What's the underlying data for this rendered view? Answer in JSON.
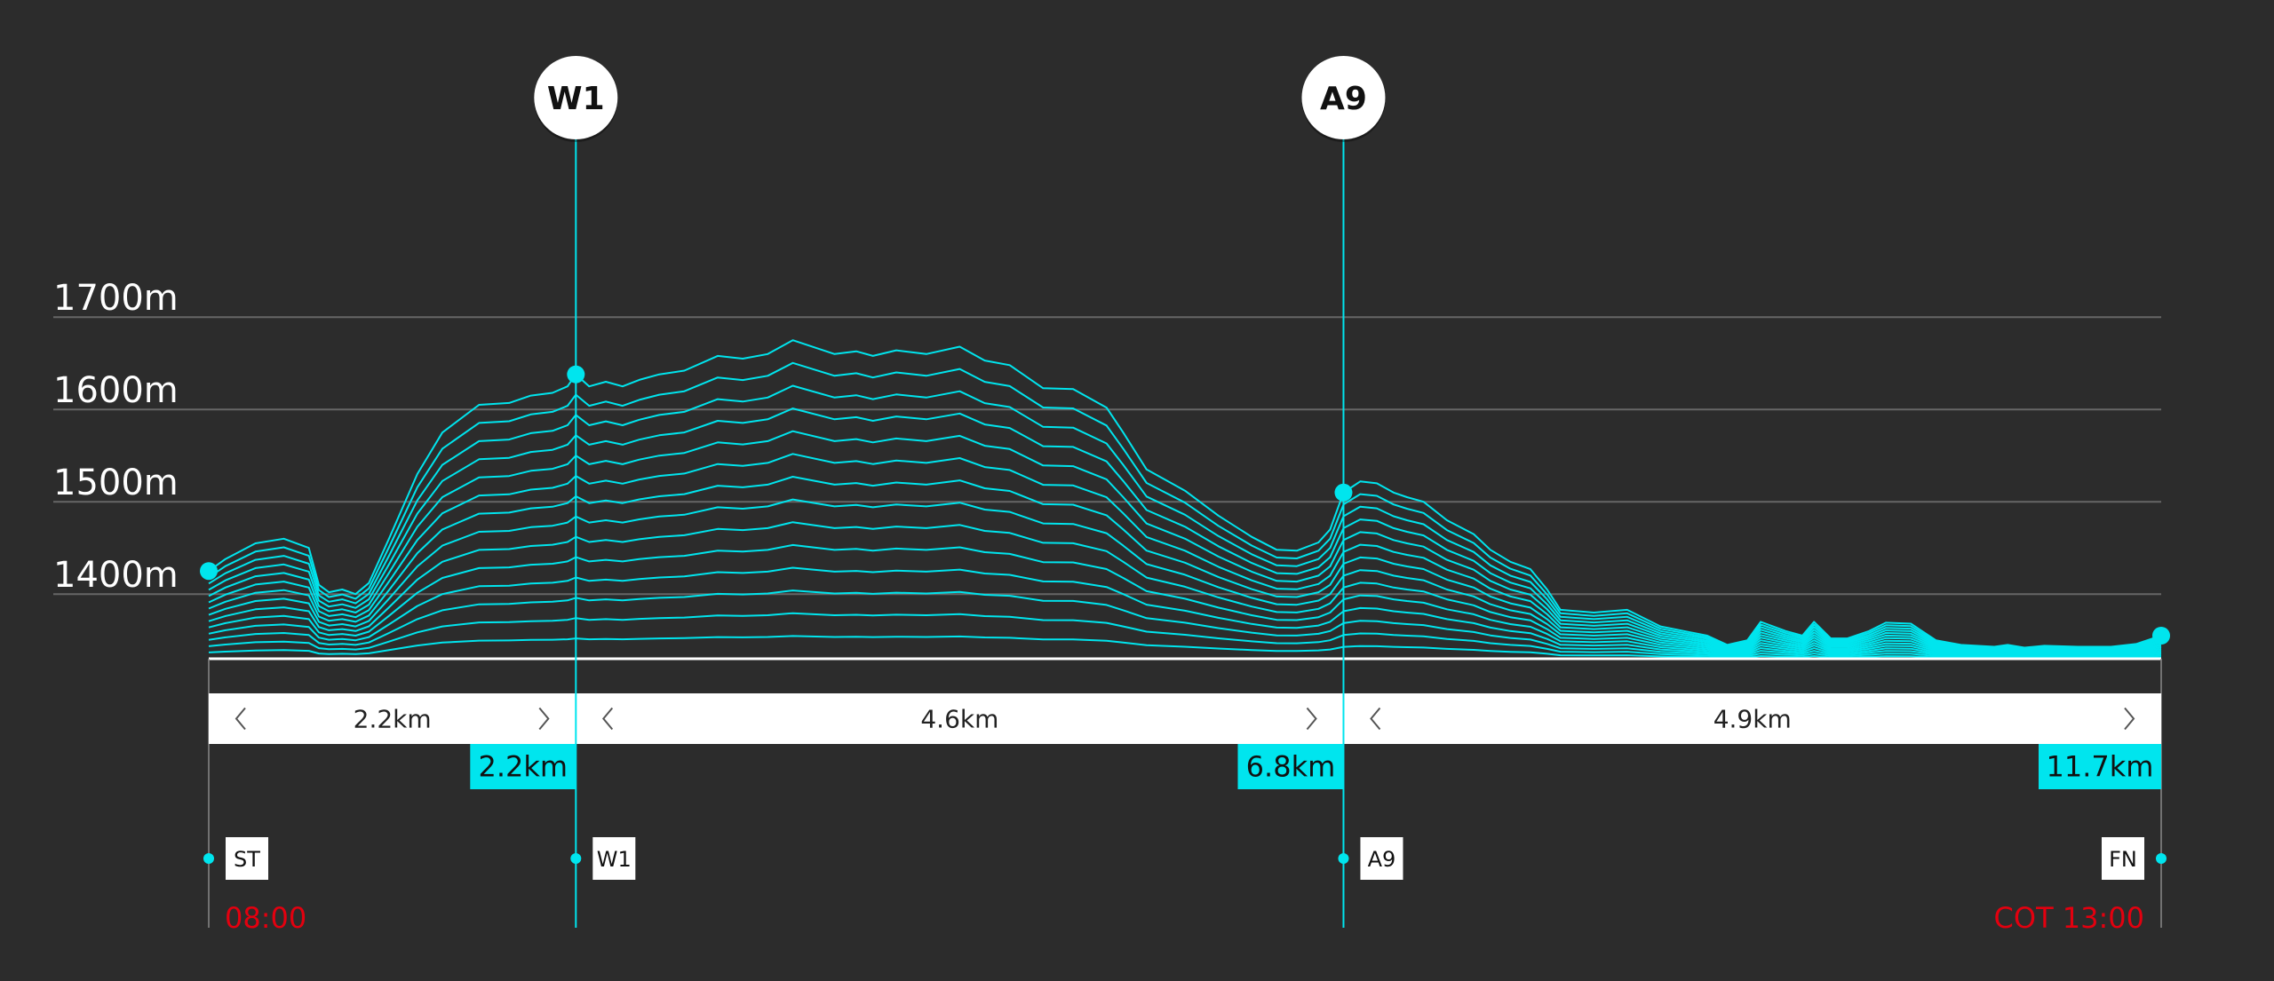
{
  "colors": {
    "background": "#2c2c2c",
    "accent": "#00e5ee",
    "gridline": "#666666",
    "baseline": "#ffffff",
    "time": "#e3000f"
  },
  "chart_data": {
    "type": "line",
    "title": "",
    "xlabel": "",
    "ylabel": "",
    "x_unit": "km",
    "xlim": [
      0,
      11.7
    ],
    "ylim": [
      1330,
      1700
    ],
    "y_ticks": [
      {
        "value": 1700,
        "label": "1700m"
      },
      {
        "value": 1600,
        "label": "1600m"
      },
      {
        "value": 1500,
        "label": "1500m"
      },
      {
        "value": 1400,
        "label": "1400m"
      }
    ],
    "grid": true,
    "layers": 14,
    "series": [
      {
        "x": [
          0,
          0.1,
          0.28,
          0.45,
          0.6,
          0.66,
          0.72,
          0.8,
          0.88,
          0.96,
          1.08,
          1.25,
          1.4,
          1.62,
          1.8,
          1.93,
          2.06,
          2.15,
          2.2,
          2.28,
          2.38,
          2.48,
          2.58,
          2.7,
          2.85,
          3.05,
          3.2,
          3.35,
          3.5,
          3.75,
          3.88,
          3.98,
          4.12,
          4.3,
          4.5,
          4.65,
          4.8,
          5.0,
          5.18,
          5.38,
          5.48,
          5.62,
          5.85,
          6.05,
          6.25,
          6.4,
          6.52,
          6.65,
          6.72,
          6.8,
          6.9,
          7.0,
          7.1,
          7.18,
          7.28,
          7.42,
          7.58,
          7.68,
          7.8,
          7.92,
          8.02,
          8.1,
          8.3,
          8.5,
          8.7,
          8.98,
          9.1,
          9.22,
          9.3,
          9.45,
          9.55,
          9.62,
          9.72,
          9.82,
          9.95,
          10.05,
          10.2,
          10.35,
          10.5,
          10.7,
          10.78,
          10.88,
          11.0,
          11.2,
          11.4,
          11.55,
          11.7
        ],
        "y": [
          1425,
          1438,
          1455,
          1460,
          1450,
          1410,
          1402,
          1405,
          1400,
          1412,
          1460,
          1530,
          1575,
          1605,
          1607,
          1615,
          1618,
          1625,
          1638,
          1625,
          1630,
          1625,
          1632,
          1638,
          1642,
          1658,
          1655,
          1660,
          1675,
          1660,
          1663,
          1658,
          1664,
          1660,
          1668,
          1653,
          1648,
          1623,
          1622,
          1602,
          1575,
          1535,
          1512,
          1485,
          1462,
          1448,
          1447,
          1456,
          1470,
          1510,
          1522,
          1520,
          1510,
          1505,
          1500,
          1480,
          1465,
          1448,
          1435,
          1427,
          1405,
          1383,
          1380,
          1383,
          1365,
          1355,
          1345,
          1350,
          1370,
          1360,
          1355,
          1370,
          1352,
          1352,
          1360,
          1369,
          1368,
          1350,
          1345,
          1343,
          1345,
          1342,
          1344,
          1343,
          1343,
          1346,
          1355
        ]
      }
    ],
    "markers": [
      {
        "label": "W1",
        "x": 2.2
      },
      {
        "label": "A9",
        "x": 6.8
      }
    ],
    "segments": [
      {
        "from": 0,
        "to": 2.2,
        "label": "2.2km"
      },
      {
        "from": 2.2,
        "to": 6.8,
        "label": "4.6km"
      },
      {
        "from": 6.8,
        "to": 11.7,
        "label": "4.9km"
      }
    ],
    "cumulative": [
      {
        "x": 2.2,
        "label": "2.2km"
      },
      {
        "x": 6.8,
        "label": "6.8km"
      },
      {
        "x": 11.7,
        "label": "11.7km"
      }
    ],
    "checkpoints": [
      {
        "label": "ST",
        "x": 0,
        "side": "right"
      },
      {
        "label": "W1",
        "x": 2.2,
        "side": "right"
      },
      {
        "label": "A9",
        "x": 6.8,
        "side": "right"
      },
      {
        "label": "FN",
        "x": 11.7,
        "side": "left"
      }
    ],
    "times": [
      {
        "label": "08:00",
        "x": 0,
        "anchor": "start"
      },
      {
        "label": "COT 13:00",
        "x": 11.7,
        "anchor": "end"
      }
    ]
  }
}
